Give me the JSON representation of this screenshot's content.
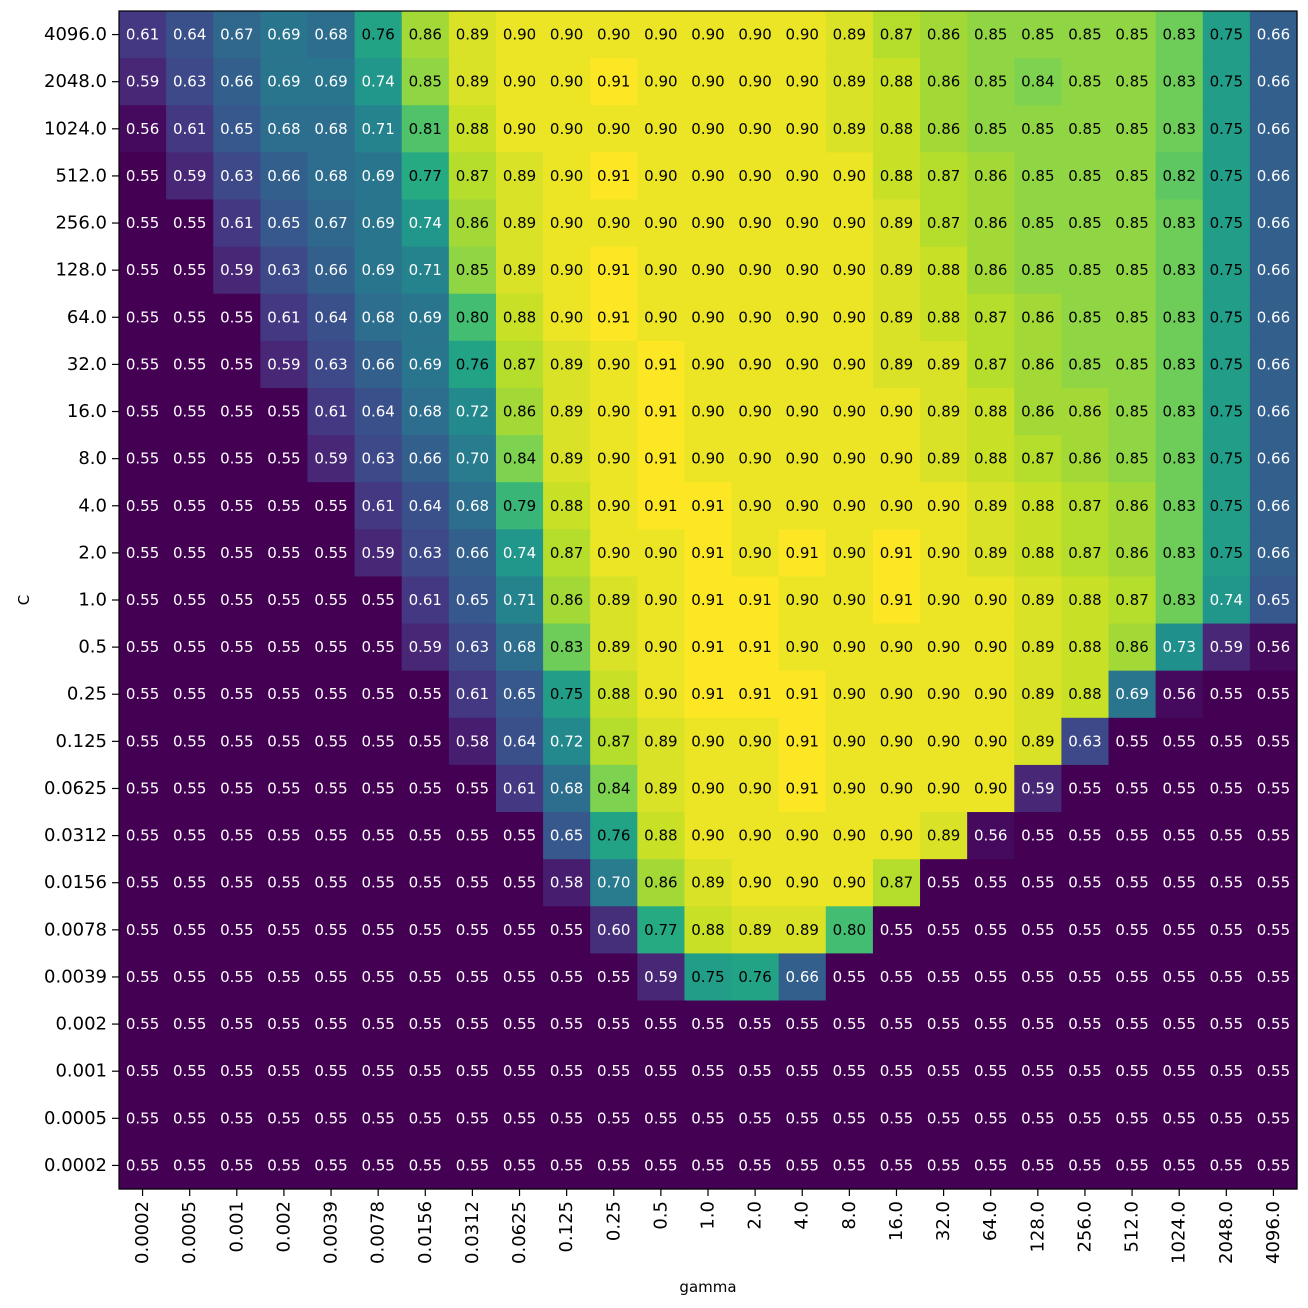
{
  "chart_data": {
    "type": "heatmap",
    "title": "",
    "xlabel": "gamma",
    "ylabel": "C",
    "x": [
      "0.0002",
      "0.0005",
      "0.001",
      "0.002",
      "0.0039",
      "0.0078",
      "0.0156",
      "0.0312",
      "0.0625",
      "0.125",
      "0.25",
      "0.5",
      "1.0",
      "2.0",
      "4.0",
      "8.0",
      "16.0",
      "32.0",
      "64.0",
      "128.0",
      "256.0",
      "512.0",
      "1024.0",
      "2048.0",
      "4096.0"
    ],
    "y": [
      "4096.0",
      "2048.0",
      "1024.0",
      "512.0",
      "256.0",
      "128.0",
      "64.0",
      "32.0",
      "16.0",
      "8.0",
      "4.0",
      "2.0",
      "1.0",
      "0.5",
      "0.25",
      "0.125",
      "0.0625",
      "0.0312",
      "0.0156",
      "0.0078",
      "0.0039",
      "0.002",
      "0.001",
      "0.0005",
      "0.0002"
    ],
    "values": [
      [
        "0.61",
        "0.64",
        "0.67",
        "0.69",
        "0.68",
        "0.76",
        "0.86",
        "0.89",
        "0.90",
        "0.90",
        "0.90",
        "0.90",
        "0.90",
        "0.90",
        "0.90",
        "0.89",
        "0.87",
        "0.86",
        "0.85",
        "0.85",
        "0.85",
        "0.85",
        "0.83",
        "0.75",
        "0.66"
      ],
      [
        "0.59",
        "0.63",
        "0.66",
        "0.69",
        "0.69",
        "0.74",
        "0.85",
        "0.89",
        "0.90",
        "0.90",
        "0.91",
        "0.90",
        "0.90",
        "0.90",
        "0.90",
        "0.89",
        "0.88",
        "0.86",
        "0.85",
        "0.84",
        "0.85",
        "0.85",
        "0.83",
        "0.75",
        "0.66"
      ],
      [
        "0.56",
        "0.61",
        "0.65",
        "0.68",
        "0.68",
        "0.71",
        "0.81",
        "0.88",
        "0.90",
        "0.90",
        "0.90",
        "0.90",
        "0.90",
        "0.90",
        "0.90",
        "0.89",
        "0.88",
        "0.86",
        "0.85",
        "0.85",
        "0.85",
        "0.85",
        "0.83",
        "0.75",
        "0.66"
      ],
      [
        "0.55",
        "0.59",
        "0.63",
        "0.66",
        "0.68",
        "0.69",
        "0.77",
        "0.87",
        "0.89",
        "0.90",
        "0.91",
        "0.90",
        "0.90",
        "0.90",
        "0.90",
        "0.90",
        "0.88",
        "0.87",
        "0.86",
        "0.85",
        "0.85",
        "0.85",
        "0.82",
        "0.75",
        "0.66"
      ],
      [
        "0.55",
        "0.55",
        "0.61",
        "0.65",
        "0.67",
        "0.69",
        "0.74",
        "0.86",
        "0.89",
        "0.90",
        "0.90",
        "0.90",
        "0.90",
        "0.90",
        "0.90",
        "0.90",
        "0.89",
        "0.87",
        "0.86",
        "0.85",
        "0.85",
        "0.85",
        "0.83",
        "0.75",
        "0.66"
      ],
      [
        "0.55",
        "0.55",
        "0.59",
        "0.63",
        "0.66",
        "0.69",
        "0.71",
        "0.85",
        "0.89",
        "0.90",
        "0.91",
        "0.90",
        "0.90",
        "0.90",
        "0.90",
        "0.90",
        "0.89",
        "0.88",
        "0.86",
        "0.85",
        "0.85",
        "0.85",
        "0.83",
        "0.75",
        "0.66"
      ],
      [
        "0.55",
        "0.55",
        "0.55",
        "0.61",
        "0.64",
        "0.68",
        "0.69",
        "0.80",
        "0.88",
        "0.90",
        "0.91",
        "0.90",
        "0.90",
        "0.90",
        "0.90",
        "0.90",
        "0.89",
        "0.88",
        "0.87",
        "0.86",
        "0.85",
        "0.85",
        "0.83",
        "0.75",
        "0.66"
      ],
      [
        "0.55",
        "0.55",
        "0.55",
        "0.59",
        "0.63",
        "0.66",
        "0.69",
        "0.76",
        "0.87",
        "0.89",
        "0.90",
        "0.91",
        "0.90",
        "0.90",
        "0.90",
        "0.90",
        "0.89",
        "0.89",
        "0.87",
        "0.86",
        "0.85",
        "0.85",
        "0.83",
        "0.75",
        "0.66"
      ],
      [
        "0.55",
        "0.55",
        "0.55",
        "0.55",
        "0.61",
        "0.64",
        "0.68",
        "0.72",
        "0.86",
        "0.89",
        "0.90",
        "0.91",
        "0.90",
        "0.90",
        "0.90",
        "0.90",
        "0.90",
        "0.89",
        "0.88",
        "0.86",
        "0.86",
        "0.85",
        "0.83",
        "0.75",
        "0.66"
      ],
      [
        "0.55",
        "0.55",
        "0.55",
        "0.55",
        "0.59",
        "0.63",
        "0.66",
        "0.70",
        "0.84",
        "0.89",
        "0.90",
        "0.91",
        "0.90",
        "0.90",
        "0.90",
        "0.90",
        "0.90",
        "0.89",
        "0.88",
        "0.87",
        "0.86",
        "0.85",
        "0.83",
        "0.75",
        "0.66"
      ],
      [
        "0.55",
        "0.55",
        "0.55",
        "0.55",
        "0.55",
        "0.61",
        "0.64",
        "0.68",
        "0.79",
        "0.88",
        "0.90",
        "0.91",
        "0.91",
        "0.90",
        "0.90",
        "0.90",
        "0.90",
        "0.90",
        "0.89",
        "0.88",
        "0.87",
        "0.86",
        "0.83",
        "0.75",
        "0.66"
      ],
      [
        "0.55",
        "0.55",
        "0.55",
        "0.55",
        "0.55",
        "0.59",
        "0.63",
        "0.66",
        "0.74",
        "0.87",
        "0.90",
        "0.90",
        "0.91",
        "0.90",
        "0.91",
        "0.90",
        "0.91",
        "0.90",
        "0.89",
        "0.88",
        "0.87",
        "0.86",
        "0.83",
        "0.75",
        "0.66"
      ],
      [
        "0.55",
        "0.55",
        "0.55",
        "0.55",
        "0.55",
        "0.55",
        "0.61",
        "0.65",
        "0.71",
        "0.86",
        "0.89",
        "0.90",
        "0.91",
        "0.91",
        "0.90",
        "0.90",
        "0.91",
        "0.90",
        "0.90",
        "0.89",
        "0.88",
        "0.87",
        "0.83",
        "0.74",
        "0.65"
      ],
      [
        "0.55",
        "0.55",
        "0.55",
        "0.55",
        "0.55",
        "0.55",
        "0.59",
        "0.63",
        "0.68",
        "0.83",
        "0.89",
        "0.90",
        "0.91",
        "0.91",
        "0.90",
        "0.90",
        "0.90",
        "0.90",
        "0.90",
        "0.89",
        "0.88",
        "0.86",
        "0.73",
        "0.59",
        "0.56"
      ],
      [
        "0.55",
        "0.55",
        "0.55",
        "0.55",
        "0.55",
        "0.55",
        "0.55",
        "0.61",
        "0.65",
        "0.75",
        "0.88",
        "0.90",
        "0.91",
        "0.91",
        "0.91",
        "0.90",
        "0.90",
        "0.90",
        "0.90",
        "0.89",
        "0.88",
        "0.69",
        "0.56",
        "0.55",
        "0.55"
      ],
      [
        "0.55",
        "0.55",
        "0.55",
        "0.55",
        "0.55",
        "0.55",
        "0.55",
        "0.58",
        "0.64",
        "0.72",
        "0.87",
        "0.89",
        "0.90",
        "0.90",
        "0.91",
        "0.90",
        "0.90",
        "0.90",
        "0.90",
        "0.89",
        "0.63",
        "0.55",
        "0.55",
        "0.55",
        "0.55"
      ],
      [
        "0.55",
        "0.55",
        "0.55",
        "0.55",
        "0.55",
        "0.55",
        "0.55",
        "0.55",
        "0.61",
        "0.68",
        "0.84",
        "0.89",
        "0.90",
        "0.90",
        "0.91",
        "0.90",
        "0.90",
        "0.90",
        "0.90",
        "0.59",
        "0.55",
        "0.55",
        "0.55",
        "0.55",
        "0.55"
      ],
      [
        "0.55",
        "0.55",
        "0.55",
        "0.55",
        "0.55",
        "0.55",
        "0.55",
        "0.55",
        "0.55",
        "0.65",
        "0.76",
        "0.88",
        "0.90",
        "0.90",
        "0.90",
        "0.90",
        "0.90",
        "0.89",
        "0.56",
        "0.55",
        "0.55",
        "0.55",
        "0.55",
        "0.55",
        "0.55"
      ],
      [
        "0.55",
        "0.55",
        "0.55",
        "0.55",
        "0.55",
        "0.55",
        "0.55",
        "0.55",
        "0.55",
        "0.58",
        "0.70",
        "0.86",
        "0.89",
        "0.90",
        "0.90",
        "0.90",
        "0.87",
        "0.55",
        "0.55",
        "0.55",
        "0.55",
        "0.55",
        "0.55",
        "0.55",
        "0.55"
      ],
      [
        "0.55",
        "0.55",
        "0.55",
        "0.55",
        "0.55",
        "0.55",
        "0.55",
        "0.55",
        "0.55",
        "0.55",
        "0.60",
        "0.77",
        "0.88",
        "0.89",
        "0.89",
        "0.80",
        "0.55",
        "0.55",
        "0.55",
        "0.55",
        "0.55",
        "0.55",
        "0.55",
        "0.55",
        "0.55"
      ],
      [
        "0.55",
        "0.55",
        "0.55",
        "0.55",
        "0.55",
        "0.55",
        "0.55",
        "0.55",
        "0.55",
        "0.55",
        "0.55",
        "0.59",
        "0.75",
        "0.76",
        "0.66",
        "0.55",
        "0.55",
        "0.55",
        "0.55",
        "0.55",
        "0.55",
        "0.55",
        "0.55",
        "0.55",
        "0.55"
      ],
      [
        "0.55",
        "0.55",
        "0.55",
        "0.55",
        "0.55",
        "0.55",
        "0.55",
        "0.55",
        "0.55",
        "0.55",
        "0.55",
        "0.55",
        "0.55",
        "0.55",
        "0.55",
        "0.55",
        "0.55",
        "0.55",
        "0.55",
        "0.55",
        "0.55",
        "0.55",
        "0.55",
        "0.55",
        "0.55"
      ],
      [
        "0.55",
        "0.55",
        "0.55",
        "0.55",
        "0.55",
        "0.55",
        "0.55",
        "0.55",
        "0.55",
        "0.55",
        "0.55",
        "0.55",
        "0.55",
        "0.55",
        "0.55",
        "0.55",
        "0.55",
        "0.55",
        "0.55",
        "0.55",
        "0.55",
        "0.55",
        "0.55",
        "0.55",
        "0.55"
      ],
      [
        "0.55",
        "0.55",
        "0.55",
        "0.55",
        "0.55",
        "0.55",
        "0.55",
        "0.55",
        "0.55",
        "0.55",
        "0.55",
        "0.55",
        "0.55",
        "0.55",
        "0.55",
        "0.55",
        "0.55",
        "0.55",
        "0.55",
        "0.55",
        "0.55",
        "0.55",
        "0.55",
        "0.55",
        "0.55"
      ],
      [
        "0.55",
        "0.55",
        "0.55",
        "0.55",
        "0.55",
        "0.55",
        "0.55",
        "0.55",
        "0.55",
        "0.55",
        "0.55",
        "0.55",
        "0.55",
        "0.55",
        "0.55",
        "0.55",
        "0.55",
        "0.55",
        "0.55",
        "0.55",
        "0.55",
        "0.55",
        "0.55",
        "0.55",
        "0.55"
      ]
    ],
    "colormap": "viridis",
    "grid": false,
    "legend": "none"
  }
}
